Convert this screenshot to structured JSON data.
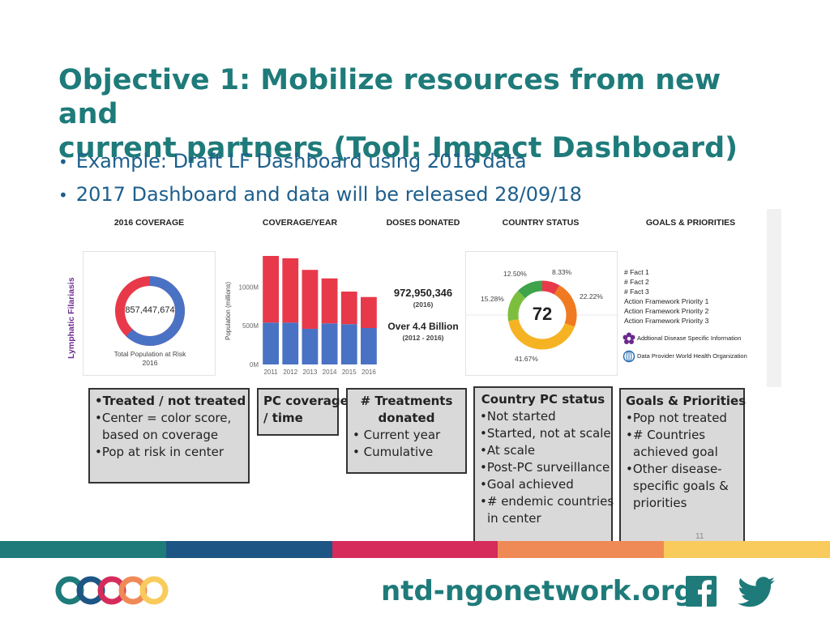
{
  "title_line1": "Objective 1: Mobilize resources from new and",
  "title_line2": "current partners (Tool: Impact Dashboard)",
  "bullets": [
    "Example: Draft LF Dashboard using 2016 data",
    "2017 Dashboard and data will be released 28/09/18"
  ],
  "dashboard": {
    "side_label": "Lymphatic Filariasis",
    "headers": {
      "coverage": "2016 COVERAGE",
      "coverage_year": "COVERAGE/YEAR",
      "doses": "DOSES DONATED",
      "country": "COUNTRY STATUS",
      "goals": "GOALS & PRIORITIES"
    },
    "coverage": {
      "value": "857,447,674",
      "caption1": "Total Population at Risk",
      "caption2": "2016",
      "treated_share": 0.62,
      "colors": {
        "treated": "#4a72c4",
        "not_treated": "#e8394a"
      }
    },
    "chart_data": {
      "type": "bar",
      "title": "COVERAGE/YEAR",
      "ylabel": "Population (millions)",
      "categories": [
        "2011",
        "2012",
        "2013",
        "2014",
        "2015",
        "2016"
      ],
      "series": [
        {
          "name": "Treated",
          "color": "#4a72c4",
          "values": [
            540,
            540,
            460,
            530,
            520,
            470
          ]
        },
        {
          "name": "Not treated",
          "color": "#e8394a",
          "values": [
            860,
            830,
            760,
            580,
            420,
            400
          ]
        }
      ],
      "ylim": [
        0,
        1400
      ],
      "yticks": [
        {
          "value": 0,
          "label": "0M"
        },
        {
          "value": 500,
          "label": "500M"
        },
        {
          "value": 1000,
          "label": "1000M"
        }
      ]
    },
    "doses": {
      "current_value": "972,950,346",
      "current_year": "(2016)",
      "cumulative_value": "Over 4.4 Billion",
      "cumulative_years": "(2012 - 2016)"
    },
    "country_status": {
      "center_value": "72",
      "slices": [
        {
          "label": "8.33%",
          "value": 8.33,
          "color": "#e8394a"
        },
        {
          "label": "22.22%",
          "value": 22.22,
          "color": "#f07a22"
        },
        {
          "label": "41.67%",
          "value": 41.67,
          "color": "#f5b323"
        },
        {
          "label": "15.28%",
          "value": 15.28,
          "color": "#7cbf3f"
        },
        {
          "label": "12.50%",
          "value": 12.5,
          "color": "#3ea34b"
        }
      ]
    },
    "goals": {
      "items": [
        "# Fact 1",
        "# Fact 2",
        "# Fact 3",
        "Action Framework Priority 1",
        "Action Framework Priority 2",
        "Action Framework Priority 3"
      ],
      "additional": "Addtional Disease Specific Information",
      "provider": "Data Provider World Health Organization"
    }
  },
  "callouts": {
    "coverage": {
      "heading": "Treated / not treated",
      "items": [
        "Center = color score,",
        "based on coverage",
        "Pop at risk in center"
      ]
    },
    "pc_coverage": {
      "heading_line1": "PC coverage",
      "heading_line2": "/ time"
    },
    "treatments": {
      "heading_line1": "# Treatments",
      "heading_line2": "donated",
      "items": [
        "Current year",
        "Cumulative"
      ]
    },
    "country_pc": {
      "heading": "Country PC status",
      "items": [
        "Not started",
        "Started, not at scale",
        "At scale",
        "Post-PC surveillance",
        "Goal achieved",
        "# endemic countries",
        "in center"
      ]
    },
    "goals": {
      "heading": "Goals & Priorities",
      "items": [
        "Pop not treated",
        "# Countries",
        "achieved goal",
        "Other disease-",
        "specific goals &",
        "priorities"
      ]
    }
  },
  "page_number": "11",
  "footer": {
    "url": "ntd-ngonetwork.org",
    "bar_colors": [
      "#1e7b7a",
      "#1d5584",
      "#d52c5b",
      "#ef8a57",
      "#f8cb5c"
    ],
    "logo_colors": [
      "#1e7b7a",
      "#1d5584",
      "#d52c5b",
      "#ef8a57",
      "#f8cb5c"
    ],
    "social": {
      "facebook_color": "#1e7b7a",
      "twitter_color": "#1e7b7a"
    }
  }
}
